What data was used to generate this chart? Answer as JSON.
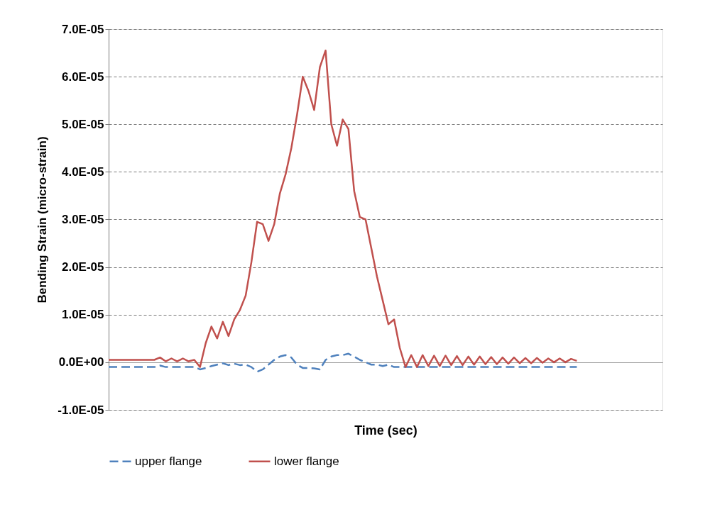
{
  "chart_data": {
    "type": "line",
    "xlabel": "Time (sec)",
    "ylabel": "Bending Strain (micro-strain)",
    "categories": [
      null,
      null,
      null,
      null,
      null,
      null,
      null,
      null,
      null,
      null,
      null,
      null,
      null,
      null,
      null,
      null,
      null,
      null,
      null,
      null,
      null,
      null,
      null,
      null,
      null,
      null,
      null,
      null,
      null,
      null,
      null,
      null,
      null,
      null,
      null,
      null,
      null,
      null,
      null,
      null,
      null,
      null,
      null,
      null,
      null,
      null,
      null,
      null,
      null,
      null,
      null,
      null,
      null,
      null,
      null,
      null,
      null,
      null,
      null,
      null,
      null,
      null,
      null,
      null,
      null,
      null,
      null,
      null,
      null,
      null,
      null,
      null,
      null,
      null,
      null,
      null,
      null,
      null,
      null,
      null,
      null,
      null,
      null,
      null,
      null,
      null,
      null,
      null,
      null,
      null,
      null,
      null,
      null,
      null,
      null,
      null,
      null,
      null
    ],
    "series": [
      {
        "name": "upper flange",
        "color": "#4f81bd",
        "line_style": "dashed",
        "values": [
          -1e-06,
          -1e-06,
          -1e-06,
          -1e-06,
          -1e-06,
          -1e-06,
          -1e-06,
          -1e-06,
          -1e-06,
          -7e-07,
          -1e-06,
          -1e-06,
          -1e-06,
          -1e-06,
          -1e-06,
          -1e-06,
          -1.5e-06,
          -1.2e-06,
          -8e-07,
          -5e-07,
          -2e-07,
          -6e-07,
          -3e-07,
          -6e-07,
          -5e-07,
          -1e-06,
          -2e-06,
          -1.5e-06,
          -5e-07,
          5e-07,
          1.2e-06,
          1.5e-06,
          1e-06,
          -5e-07,
          -1.2e-06,
          -1.2e-06,
          -1.3e-06,
          -1.5e-06,
          5e-07,
          1.2e-06,
          1.5e-06,
          1.5e-06,
          1.8e-06,
          1.2e-06,
          5e-07,
          0,
          -5e-07,
          -5e-07,
          -8e-07,
          -5e-07,
          -1e-06,
          -1e-06,
          -1e-06,
          -1e-06,
          -1e-06,
          -1e-06,
          -1e-06,
          -1e-06,
          -1e-06,
          -1e-06,
          -1e-06,
          -1e-06,
          -1e-06,
          -1e-06,
          -1e-06,
          -1e-06,
          -1e-06,
          -1e-06,
          -1e-06,
          -1e-06,
          -1e-06,
          -1e-06,
          -1e-06,
          -1e-06,
          -1e-06,
          -1e-06,
          -1e-06,
          -1e-06,
          -1e-06,
          -1e-06,
          -1e-06,
          -1e-06,
          -1e-06,
          null,
          null,
          null,
          null,
          null,
          null,
          null,
          null,
          null,
          null,
          null,
          null,
          null,
          null,
          null
        ]
      },
      {
        "name": "lower flange",
        "color": "#c0504d",
        "line_style": "solid",
        "values": [
          5e-07,
          5e-07,
          5e-07,
          5e-07,
          5e-07,
          5e-07,
          5e-07,
          5e-07,
          5e-07,
          1e-06,
          2e-07,
          8e-07,
          2e-07,
          8e-07,
          2e-07,
          5e-07,
          -1e-06,
          4e-06,
          7.5e-06,
          5e-06,
          8.5e-06,
          5.5e-06,
          9e-06,
          1.1e-05,
          1.4e-05,
          2.1e-05,
          2.95e-05,
          2.9e-05,
          2.55e-05,
          2.9e-05,
          3.55e-05,
          3.95e-05,
          4.5e-05,
          5.2e-05,
          6e-05,
          5.7e-05,
          5.3e-05,
          6.2e-05,
          6.55e-05,
          5e-05,
          4.55e-05,
          5.1e-05,
          4.9e-05,
          3.6e-05,
          3.05e-05,
          3e-05,
          2.4e-05,
          1.8e-05,
          1.3e-05,
          8e-06,
          9e-06,
          3e-06,
          -1e-06,
          1.5e-06,
          -1e-06,
          1.5e-06,
          -8e-07,
          1.4e-06,
          -8e-07,
          1.4e-06,
          -6e-07,
          1.3e-06,
          -6e-07,
          1.2e-06,
          -5e-07,
          1.2e-06,
          -4e-07,
          1.1e-06,
          -4e-07,
          1e-06,
          -3e-07,
          1e-06,
          -2e-07,
          9e-07,
          -2e-07,
          9e-07,
          -1e-07,
          8e-07,
          0,
          8e-07,
          0,
          7e-07,
          3e-07,
          null,
          null,
          null,
          null,
          null,
          null,
          null,
          null,
          null,
          null,
          null,
          null,
          null,
          null,
          null
        ]
      }
    ],
    "ylim": [
      -1e-05,
      7e-05
    ],
    "yticks": [
      {
        "value": -1e-05,
        "label": "-1.0E-05"
      },
      {
        "value": 0,
        "label": "0.0E+00"
      },
      {
        "value": 1e-05,
        "label": "1.0E-05"
      },
      {
        "value": 2e-05,
        "label": "2.0E-05"
      },
      {
        "value": 3e-05,
        "label": "3.0E-05"
      },
      {
        "value": 4e-05,
        "label": "4.0E-05"
      },
      {
        "value": 5e-05,
        "label": "5.0E-05"
      },
      {
        "value": 6e-05,
        "label": "6.0E-05"
      },
      {
        "value": 7e-05,
        "label": "7.0E-05"
      }
    ],
    "grid": "y",
    "legend": "bottom",
    "tick_labels": "y"
  }
}
